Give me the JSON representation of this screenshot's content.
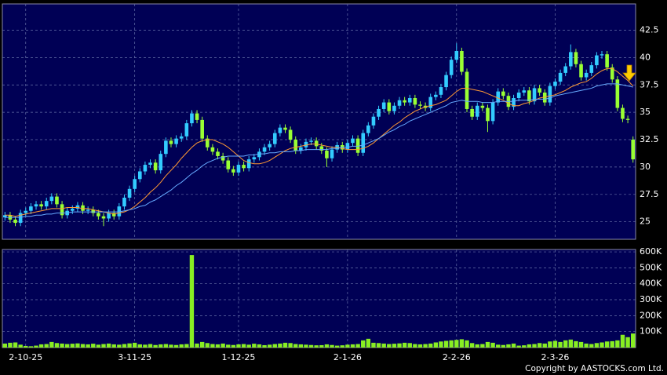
{
  "chart_data": [
    {
      "type": "candlestick",
      "categories": [
        null,
        null,
        null,
        null,
        "2-10-25",
        null,
        null,
        null,
        null,
        null,
        null,
        null,
        null,
        null,
        null,
        null,
        null,
        null,
        null,
        null,
        null,
        null,
        null,
        null,
        null,
        "3-11-25",
        null,
        null,
        null,
        null,
        null,
        null,
        null,
        null,
        null,
        null,
        null,
        null,
        null,
        null,
        null,
        null,
        null,
        null,
        null,
        "1-12-25",
        null,
        null,
        null,
        null,
        null,
        null,
        null,
        null,
        null,
        null,
        null,
        null,
        null,
        null,
        null,
        null,
        null,
        null,
        null,
        null,
        "2-1-26",
        null,
        null,
        null,
        null,
        null,
        null,
        null,
        null,
        null,
        null,
        null,
        null,
        null,
        null,
        null,
        null,
        null,
        null,
        null,
        null,
        "2-2-26",
        null,
        null,
        null,
        null,
        null,
        null,
        null,
        null,
        null,
        null,
        null,
        null,
        null,
        null,
        null,
        null,
        null,
        null,
        "2-3-26",
        null,
        null,
        null,
        null,
        null,
        null,
        null,
        null,
        null,
        null,
        null,
        null,
        null,
        null,
        null
      ],
      "open": [
        25.4,
        25.6,
        25.2,
        24.9,
        25.8,
        26.0,
        26.4,
        26.6,
        26.4,
        26.9,
        27.3,
        26.6,
        25.6,
        26.0,
        26.2,
        26.5,
        26.0,
        26.1,
        25.8,
        25.5,
        25.3,
        25.8,
        25.5,
        26.4,
        27.2,
        28.0,
        28.9,
        29.6,
        30.2,
        30.4,
        29.7,
        31.2,
        32.4,
        32.1,
        32.6,
        32.8,
        34.0,
        34.9,
        34.3,
        32.6,
        31.8,
        31.4,
        31.0,
        30.6,
        29.8,
        29.5,
        30.2,
        29.9,
        30.7,
        30.9,
        31.4,
        31.8,
        32.1,
        33.1,
        33.6,
        33.4,
        32.5,
        31.5,
        31.8,
        32.3,
        32.4,
        31.9,
        31.5,
        30.8,
        31.6,
        32.0,
        31.6,
        32.2,
        32.6,
        31.3,
        33.1,
        33.8,
        34.6,
        35.3,
        35.9,
        35.1,
        35.6,
        36.1,
        35.9,
        36.3,
        35.7,
        35.6,
        35.4,
        36.4,
        36.6,
        37.3,
        38.4,
        39.8,
        40.6,
        38.7,
        35.3,
        34.6,
        35.6,
        35.4,
        34.2,
        35.9,
        36.9,
        36.5,
        35.5,
        36.3,
        36.8,
        37.0,
        36.0,
        37.2,
        36.8,
        35.9,
        37.4,
        37.8,
        38.6,
        39.2,
        40.5,
        39.4,
        38.2,
        38.6,
        39.3,
        40.2,
        40.3,
        39.1,
        38.0,
        35.4,
        34.4,
        32.5
      ],
      "high": [
        25.9,
        25.9,
        25.5,
        26.1,
        26.3,
        26.7,
        26.9,
        26.9,
        27.2,
        27.6,
        27.6,
        26.9,
        26.3,
        26.5,
        26.8,
        26.8,
        26.4,
        26.4,
        26.1,
        25.8,
        26.1,
        26.1,
        26.7,
        27.5,
        28.3,
        29.2,
        29.9,
        30.5,
        30.7,
        30.7,
        31.5,
        32.7,
        32.7,
        32.9,
        33.1,
        34.3,
        35.2,
        35.2,
        34.6,
        32.9,
        32.1,
        31.7,
        31.3,
        30.9,
        30.1,
        30.5,
        30.5,
        31.0,
        31.2,
        31.7,
        32.1,
        32.4,
        33.4,
        33.9,
        33.9,
        33.7,
        32.8,
        32.1,
        32.6,
        32.7,
        32.7,
        32.2,
        31.8,
        31.9,
        32.3,
        32.3,
        32.5,
        32.9,
        32.9,
        33.4,
        34.1,
        34.9,
        35.6,
        36.2,
        36.2,
        35.9,
        36.4,
        36.4,
        36.6,
        36.6,
        36.0,
        35.9,
        36.7,
        36.9,
        37.6,
        38.7,
        40.1,
        41.3,
        40.9,
        39.0,
        35.6,
        35.9,
        35.9,
        35.7,
        36.2,
        37.2,
        37.2,
        36.8,
        36.6,
        37.1,
        37.3,
        37.3,
        37.5,
        37.5,
        37.1,
        37.7,
        38.1,
        38.9,
        39.5,
        41.2,
        40.8,
        39.7,
        38.9,
        39.6,
        40.5,
        40.6,
        40.6,
        39.4,
        38.3,
        35.7,
        34.7,
        32.8
      ],
      "low": [
        25.1,
        24.9,
        24.6,
        24.6,
        25.5,
        25.7,
        26.1,
        26.1,
        26.1,
        26.6,
        26.3,
        25.3,
        25.3,
        25.7,
        25.9,
        25.7,
        25.7,
        25.5,
        25.2,
        24.6,
        25.0,
        25.2,
        25.2,
        26.1,
        26.9,
        27.7,
        28.6,
        29.3,
        29.9,
        29.4,
        29.4,
        30.9,
        31.8,
        31.8,
        32.3,
        32.5,
        33.7,
        34.0,
        32.3,
        31.5,
        31.1,
        30.7,
        30.3,
        29.5,
        29.2,
        29.2,
        29.6,
        29.6,
        30.4,
        30.6,
        31.1,
        31.5,
        31.8,
        32.8,
        33.1,
        32.2,
        31.2,
        31.2,
        31.5,
        32.0,
        31.6,
        31.2,
        30.0,
        30.5,
        31.3,
        31.3,
        31.3,
        31.9,
        31.0,
        31.0,
        32.8,
        33.5,
        34.3,
        35.0,
        34.8,
        34.8,
        35.3,
        35.6,
        35.6,
        35.4,
        35.3,
        35.1,
        35.1,
        36.1,
        36.3,
        37.0,
        38.1,
        39.5,
        38.4,
        35.0,
        34.3,
        34.3,
        35.1,
        33.2,
        33.9,
        35.6,
        36.2,
        35.2,
        35.2,
        36.0,
        36.5,
        35.7,
        35.7,
        36.5,
        35.6,
        35.6,
        37.1,
        37.5,
        38.3,
        38.9,
        39.1,
        37.9,
        37.9,
        38.3,
        39.0,
        39.9,
        38.8,
        37.7,
        35.1,
        34.1,
        34.0,
        30.4
      ],
      "close": [
        25.6,
        25.2,
        24.9,
        25.8,
        26.0,
        26.4,
        26.6,
        26.4,
        26.9,
        27.3,
        26.6,
        25.6,
        26.0,
        26.2,
        26.5,
        26.0,
        26.1,
        25.8,
        25.5,
        25.3,
        25.8,
        25.5,
        26.4,
        27.2,
        28.0,
        28.9,
        29.6,
        30.2,
        30.4,
        29.7,
        31.2,
        32.4,
        32.1,
        32.6,
        32.8,
        34.0,
        34.9,
        34.3,
        32.6,
        31.8,
        31.4,
        31.0,
        30.6,
        29.8,
        29.5,
        30.2,
        29.9,
        30.7,
        30.9,
        31.4,
        31.8,
        32.1,
        33.1,
        33.6,
        33.4,
        32.5,
        31.5,
        31.8,
        32.3,
        32.4,
        31.9,
        31.5,
        30.8,
        31.6,
        32.0,
        31.6,
        32.2,
        32.6,
        31.3,
        33.1,
        33.8,
        34.6,
        35.3,
        35.9,
        35.1,
        35.6,
        36.1,
        35.9,
        36.3,
        35.7,
        35.6,
        35.4,
        36.4,
        36.6,
        37.3,
        38.4,
        39.8,
        40.6,
        38.7,
        35.3,
        34.6,
        35.6,
        35.4,
        34.2,
        35.9,
        36.9,
        36.5,
        35.5,
        36.3,
        36.8,
        37.0,
        36.0,
        37.2,
        36.8,
        35.9,
        37.4,
        37.8,
        38.6,
        39.2,
        40.5,
        39.4,
        38.2,
        38.6,
        39.3,
        40.2,
        40.3,
        39.1,
        38.0,
        35.4,
        34.4,
        34.3,
        30.7
      ],
      "up_color": "#33ccff",
      "down_color": "#99ff33",
      "lines": [
        {
          "color": "#ff9933",
          "values": [
            25.6,
            25.6,
            25.5,
            25.6,
            25.7,
            25.8,
            25.9,
            26.0,
            26.1,
            26.2,
            26.2,
            26.2,
            26.3,
            26.3,
            26.3,
            26.2,
            26.2,
            26.1,
            26.0,
            25.9,
            25.8,
            25.7,
            25.8,
            25.9,
            26.1,
            26.4,
            26.8,
            27.2,
            27.7,
            28.1,
            28.6,
            29.2,
            29.7,
            30.2,
            30.8,
            31.3,
            31.8,
            32.2,
            32.4,
            32.5,
            32.5,
            32.3,
            32.1,
            31.8,
            31.4,
            31.0,
            30.6,
            30.4,
            30.3,
            30.3,
            30.4,
            30.6,
            30.9,
            31.2,
            31.5,
            31.7,
            31.8,
            31.9,
            32.0,
            32.1,
            32.1,
            32.0,
            31.9,
            31.8,
            31.8,
            31.7,
            31.6,
            31.6,
            31.6,
            31.7,
            31.9,
            32.2,
            32.6,
            33.0,
            33.4,
            33.8,
            34.1,
            34.5,
            34.8,
            35.1,
            35.3,
            35.5,
            35.6,
            35.7,
            35.9,
            36.1,
            36.5,
            36.9,
            37.2,
            37.2,
            37.1,
            37.0,
            36.9,
            36.7,
            36.5,
            36.3,
            36.1,
            35.8,
            35.6,
            35.6,
            35.8,
            35.9,
            36.1,
            36.3,
            36.4,
            36.5,
            36.6,
            36.8,
            37.0,
            37.3,
            37.5,
            37.7,
            37.8,
            38.1,
            38.5,
            38.8,
            39.0,
            39.0,
            38.7,
            38.3,
            37.9,
            37.4
          ]
        },
        {
          "color": "#66aaff",
          "values": [
            25.4,
            25.4,
            25.4,
            25.4,
            25.5,
            25.5,
            25.6,
            25.6,
            25.7,
            25.7,
            25.8,
            25.8,
            25.8,
            25.9,
            25.9,
            25.9,
            25.9,
            25.9,
            25.9,
            25.9,
            25.9,
            25.9,
            25.9,
            26.0,
            26.1,
            26.2,
            26.4,
            26.5,
            26.8,
            27.0,
            27.3,
            27.6,
            27.9,
            28.3,
            28.6,
            29.0,
            29.4,
            29.7,
            30.1,
            30.4,
            30.6,
            30.8,
            30.9,
            31.0,
            31.0,
            31.0,
            31.0,
            31.1,
            31.1,
            31.2,
            31.2,
            31.3,
            31.3,
            31.4,
            31.4,
            31.4,
            31.5,
            31.5,
            31.6,
            31.6,
            31.6,
            31.6,
            31.6,
            31.7,
            31.7,
            31.8,
            31.8,
            31.9,
            31.9,
            32.0,
            32.2,
            32.4,
            32.6,
            32.9,
            33.2,
            33.4,
            33.7,
            33.9,
            34.2,
            34.4,
            34.6,
            34.8,
            35.0,
            35.2,
            35.4,
            35.6,
            35.9,
            36.0,
            36.1,
            36.0,
            36.0,
            36.0,
            35.9,
            35.9,
            35.9,
            36.0,
            36.0,
            36.0,
            36.0,
            36.1,
            36.1,
            36.1,
            36.2,
            36.2,
            36.2,
            36.3,
            36.5,
            36.6,
            36.7,
            36.8,
            36.9,
            37.0,
            37.1,
            37.2,
            37.4,
            37.5,
            37.6,
            37.6,
            37.6,
            37.5,
            37.4,
            37.3
          ]
        }
      ],
      "ylim": [
        23.4,
        44.9
      ],
      "yticks": [
        25,
        27.5,
        30,
        32.5,
        35,
        37.5,
        40,
        42.5
      ],
      "grid": true
    },
    {
      "type": "bar",
      "color": "#88ee22",
      "values": [
        25000,
        30000,
        32000,
        18000,
        10000,
        8000,
        12000,
        20000,
        22000,
        35000,
        28000,
        25000,
        22000,
        24000,
        26000,
        22000,
        20000,
        24000,
        18000,
        22000,
        25000,
        20000,
        18000,
        22000,
        26000,
        30000,
        20000,
        18000,
        22000,
        16000,
        20000,
        22000,
        18000,
        16000,
        20000,
        22000,
        580000,
        25000,
        35000,
        28000,
        22000,
        20000,
        25000,
        18000,
        16000,
        20000,
        22000,
        18000,
        24000,
        20000,
        15000,
        18000,
        22000,
        25000,
        30000,
        28000,
        22000,
        20000,
        18000,
        16000,
        14000,
        15000,
        20000,
        16000,
        12000,
        14000,
        18000,
        20000,
        22000,
        45000,
        55000,
        30000,
        28000,
        25000,
        22000,
        24000,
        26000,
        30000,
        28000,
        22000,
        20000,
        22000,
        25000,
        32000,
        38000,
        42000,
        45000,
        48000,
        52000,
        45000,
        28000,
        20000,
        22000,
        35000,
        30000,
        18000,
        16000,
        20000,
        25000,
        12000,
        14000,
        20000,
        22000,
        28000,
        25000,
        38000,
        42000,
        35000,
        45000,
        50000,
        40000,
        35000,
        25000,
        22000,
        28000,
        32000,
        38000,
        40000,
        45000,
        80000,
        65000,
        88000
      ],
      "ylim": [
        0,
        615000
      ],
      "yticks": [
        {
          "value": 100000,
          "label": "100K"
        },
        {
          "value": 200000,
          "label": "200K"
        },
        {
          "value": 300000,
          "label": "300K"
        },
        {
          "value": 400000,
          "label": "400K"
        },
        {
          "value": 500000,
          "label": "500K"
        },
        {
          "value": 600000,
          "label": "600K"
        }
      ],
      "grid": true
    }
  ],
  "footer": "Copyright by AASTOCKS.com Ltd."
}
